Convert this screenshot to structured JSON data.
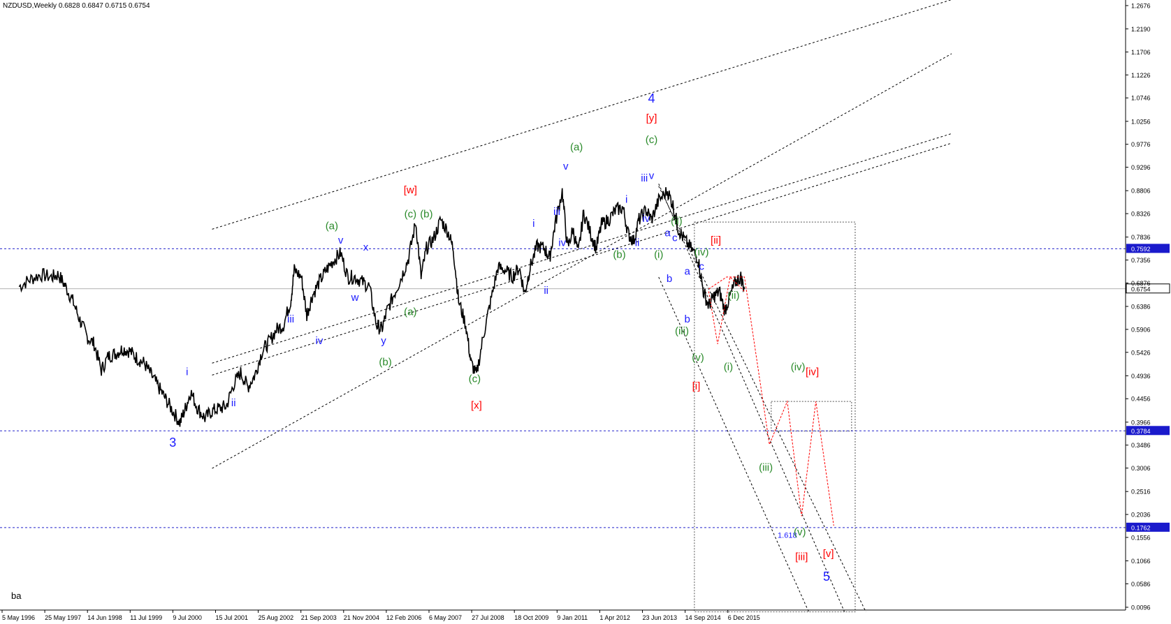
{
  "header": {
    "symbol_line": "NZDUSD,Weekly  0.6828 0.6847 0.6715 0.6754"
  },
  "footer_note": "ba",
  "colors": {
    "price": "#000000",
    "blue": "#1a1aff",
    "green": "#2a8a2a",
    "red": "#ff0000",
    "hline": "#2222cc",
    "axis_tag_bg": "#1a1acc",
    "current_tag_bg": "#ffffff"
  },
  "chart_data": {
    "type": "line",
    "title": "",
    "xlabel": "",
    "ylabel": "",
    "ylim": [
      0.0,
      1.3
    ],
    "y_axis_labels": [
      "1.2676",
      "1.2190",
      "1.1706",
      "1.1226",
      "1.0746",
      "1.0256",
      "0.9776",
      "0.9296",
      "0.8806",
      "0.8326",
      "0.7836",
      "0.7356",
      "0.6876",
      "0.6386",
      "0.5906",
      "0.5426",
      "0.4936",
      "0.4456",
      "0.3966",
      "0.3486",
      "0.3006",
      "0.2516",
      "0.2036",
      "0.1556",
      "0.1066",
      "0.0586",
      "0.0096"
    ],
    "x_axis_labels": [
      "5 May 1996",
      "25 May 1997",
      "14 Jun 1998",
      "11 Jul 1999",
      "9 Jul 2000",
      "15 Jul 2001",
      "25 Aug 2002",
      "21 Sep 2003",
      "21 Nov 2004",
      "12 Feb 2006",
      "6 May 2007",
      "27 Jul 2008",
      "18 Oct 2009",
      "9 Jan 2011",
      "1 Apr 2012",
      "23 Jun 2013",
      "14 Sep 2014",
      "6 Dec 2015"
    ],
    "price_path": [
      [
        1996.3,
        0.68
      ],
      [
        1996.6,
        0.695
      ],
      [
        1996.9,
        0.705
      ],
      [
        1997.2,
        0.7
      ],
      [
        1997.4,
        0.705
      ],
      [
        1997.6,
        0.68
      ],
      [
        1997.8,
        0.65
      ],
      [
        1998.0,
        0.61
      ],
      [
        1998.2,
        0.575
      ],
      [
        1998.4,
        0.56
      ],
      [
        1998.6,
        0.505
      ],
      [
        1998.8,
        0.535
      ],
      [
        1999.0,
        0.54
      ],
      [
        1999.2,
        0.55
      ],
      [
        1999.4,
        0.545
      ],
      [
        1999.6,
        0.53
      ],
      [
        1999.8,
        0.52
      ],
      [
        2000.0,
        0.495
      ],
      [
        2000.2,
        0.47
      ],
      [
        2000.4,
        0.445
      ],
      [
        2000.6,
        0.42
      ],
      [
        2000.8,
        0.395
      ],
      [
        2000.95,
        0.425
      ],
      [
        2001.1,
        0.46
      ],
      [
        2001.3,
        0.425
      ],
      [
        2001.5,
        0.405
      ],
      [
        2001.7,
        0.42
      ],
      [
        2001.9,
        0.425
      ],
      [
        2002.1,
        0.43
      ],
      [
        2002.3,
        0.475
      ],
      [
        2002.5,
        0.5
      ],
      [
        2002.7,
        0.47
      ],
      [
        2002.9,
        0.495
      ],
      [
        2003.1,
        0.545
      ],
      [
        2003.3,
        0.565
      ],
      [
        2003.5,
        0.59
      ],
      [
        2003.7,
        0.6
      ],
      [
        2003.9,
        0.65
      ],
      [
        2004.0,
        0.715
      ],
      [
        2004.2,
        0.7
      ],
      [
        2004.35,
        0.62
      ],
      [
        2004.5,
        0.66
      ],
      [
        2004.7,
        0.69
      ],
      [
        2004.9,
        0.715
      ],
      [
        2005.1,
        0.735
      ],
      [
        2005.3,
        0.75
      ],
      [
        2005.5,
        0.7
      ],
      [
        2005.7,
        0.7
      ],
      [
        2005.9,
        0.69
      ],
      [
        2006.1,
        0.68
      ],
      [
        2006.3,
        0.6
      ],
      [
        2006.45,
        0.59
      ],
      [
        2006.6,
        0.63
      ],
      [
        2006.8,
        0.665
      ],
      [
        2007.0,
        0.7
      ],
      [
        2007.2,
        0.74
      ],
      [
        2007.4,
        0.815
      ],
      [
        2007.55,
        0.7
      ],
      [
        2007.7,
        0.76
      ],
      [
        2007.9,
        0.78
      ],
      [
        2008.1,
        0.82
      ],
      [
        2008.3,
        0.795
      ],
      [
        2008.45,
        0.76
      ],
      [
        2008.6,
        0.65
      ],
      [
        2008.8,
        0.6
      ],
      [
        2008.95,
        0.52
      ],
      [
        2009.1,
        0.495
      ],
      [
        2009.3,
        0.58
      ],
      [
        2009.5,
        0.65
      ],
      [
        2009.7,
        0.72
      ],
      [
        2009.9,
        0.715
      ],
      [
        2010.1,
        0.7
      ],
      [
        2010.3,
        0.72
      ],
      [
        2010.45,
        0.665
      ],
      [
        2010.6,
        0.72
      ],
      [
        2010.8,
        0.765
      ],
      [
        2011.0,
        0.76
      ],
      [
        2011.15,
        0.74
      ],
      [
        2011.3,
        0.81
      ],
      [
        2011.5,
        0.88
      ],
      [
        2011.65,
        0.76
      ],
      [
        2011.8,
        0.8
      ],
      [
        2011.95,
        0.75
      ],
      [
        2012.1,
        0.835
      ],
      [
        2012.3,
        0.79
      ],
      [
        2012.45,
        0.76
      ],
      [
        2012.6,
        0.81
      ],
      [
        2012.8,
        0.82
      ],
      [
        2013.0,
        0.84
      ],
      [
        2013.2,
        0.845
      ],
      [
        2013.35,
        0.79
      ],
      [
        2013.5,
        0.775
      ],
      [
        2013.65,
        0.82
      ],
      [
        2013.85,
        0.84
      ],
      [
        2014.0,
        0.82
      ],
      [
        2014.2,
        0.86
      ],
      [
        2014.45,
        0.88
      ],
      [
        2014.6,
        0.85
      ],
      [
        2014.75,
        0.8
      ],
      [
        2014.9,
        0.78
      ],
      [
        2015.1,
        0.76
      ],
      [
        2015.3,
        0.74
      ],
      [
        2015.45,
        0.67
      ],
      [
        2015.6,
        0.64
      ],
      [
        2015.75,
        0.66
      ],
      [
        2015.9,
        0.67
      ],
      [
        2016.05,
        0.63
      ],
      [
        2016.2,
        0.66
      ],
      [
        2016.35,
        0.69
      ],
      [
        2016.5,
        0.7
      ],
      [
        2016.6,
        0.675
      ]
    ],
    "labels": [
      {
        "t": "3",
        "x": 2000.6,
        "y": 0.345,
        "c": "blue",
        "s": 18
      },
      {
        "t": "i",
        "x": 2001.0,
        "y": 0.495,
        "c": "blue",
        "s": 15
      },
      {
        "t": "ii",
        "x": 2002.3,
        "y": 0.43,
        "c": "blue",
        "s": 15
      },
      {
        "t": "iii",
        "x": 2003.9,
        "y": 0.605,
        "c": "blue",
        "s": 15
      },
      {
        "t": "iv",
        "x": 2004.7,
        "y": 0.56,
        "c": "blue",
        "s": 15
      },
      {
        "t": "v",
        "x": 2005.3,
        "y": 0.77,
        "c": "blue",
        "s": 15
      },
      {
        "t": "w",
        "x": 2005.7,
        "y": 0.65,
        "c": "blue",
        "s": 15
      },
      {
        "t": "x",
        "x": 2006.0,
        "y": 0.755,
        "c": "blue",
        "s": 15
      },
      {
        "t": "y",
        "x": 2006.5,
        "y": 0.56,
        "c": "blue",
        "s": 15
      },
      {
        "t": "(a)",
        "x": 2005.05,
        "y": 0.8,
        "c": "green",
        "s": 15
      },
      {
        "t": "(b)",
        "x": 2006.55,
        "y": 0.515,
        "c": "green",
        "s": 15
      },
      {
        "t": "(c)",
        "x": 2007.25,
        "y": 0.825,
        "c": "green",
        "s": 15
      },
      {
        "t": "[w]",
        "x": 2007.25,
        "y": 0.875,
        "c": "red",
        "s": 15
      },
      {
        "t": "(b)",
        "x": 2007.7,
        "y": 0.825,
        "c": "green",
        "s": 15
      },
      {
        "t": "(a)",
        "x": 2007.25,
        "y": 0.62,
        "c": "green",
        "s": 15
      },
      {
        "t": "(c)",
        "x": 2009.05,
        "y": 0.48,
        "c": "green",
        "s": 15
      },
      {
        "t": "[x]",
        "x": 2009.1,
        "y": 0.425,
        "c": "red",
        "s": 15
      },
      {
        "t": "i",
        "x": 2010.7,
        "y": 0.805,
        "c": "blue",
        "s": 15
      },
      {
        "t": "ii",
        "x": 2011.05,
        "y": 0.665,
        "c": "blue",
        "s": 15
      },
      {
        "t": "iii",
        "x": 2011.35,
        "y": 0.83,
        "c": "blue",
        "s": 15
      },
      {
        "t": "iv",
        "x": 2011.5,
        "y": 0.765,
        "c": "blue",
        "s": 15
      },
      {
        "t": "v",
        "x": 2011.6,
        "y": 0.925,
        "c": "blue",
        "s": 15
      },
      {
        "t": "(a)",
        "x": 2011.9,
        "y": 0.965,
        "c": "green",
        "s": 15
      },
      {
        "t": "(b)",
        "x": 2013.1,
        "y": 0.74,
        "c": "green",
        "s": 15
      },
      {
        "t": "i",
        "x": 2013.3,
        "y": 0.855,
        "c": "blue",
        "s": 15
      },
      {
        "t": "ii",
        "x": 2013.6,
        "y": 0.765,
        "c": "blue",
        "s": 15
      },
      {
        "t": "iii",
        "x": 2013.8,
        "y": 0.9,
        "c": "blue",
        "s": 15
      },
      {
        "t": "v",
        "x": 2014.0,
        "y": 0.905,
        "c": "blue",
        "s": 15
      },
      {
        "t": "iv",
        "x": 2013.85,
        "y": 0.815,
        "c": "blue",
        "s": 15
      },
      {
        "t": "(c)",
        "x": 2014.0,
        "y": 0.98,
        "c": "green",
        "s": 15
      },
      {
        "t": "[y]",
        "x": 2014.0,
        "y": 1.025,
        "c": "red",
        "s": 15
      },
      {
        "t": "4",
        "x": 2014.0,
        "y": 1.065,
        "c": "blue",
        "s": 18
      },
      {
        "t": "(ii)",
        "x": 2014.7,
        "y": 0.81,
        "c": "green",
        "s": 15
      },
      {
        "t": "a",
        "x": 2014.45,
        "y": 0.785,
        "c": "blue",
        "s": 15
      },
      {
        "t": "c",
        "x": 2014.65,
        "y": 0.775,
        "c": "blue",
        "s": 15
      },
      {
        "t": "(i)",
        "x": 2014.2,
        "y": 0.74,
        "c": "green",
        "s": 15
      },
      {
        "t": "b",
        "x": 2014.5,
        "y": 0.69,
        "c": "blue",
        "s": 15
      },
      {
        "t": "a",
        "x": 2015.0,
        "y": 0.705,
        "c": "blue",
        "s": 15
      },
      {
        "t": "(iv)",
        "x": 2015.4,
        "y": 0.745,
        "c": "green",
        "s": 15
      },
      {
        "t": "c",
        "x": 2015.4,
        "y": 0.715,
        "c": "blue",
        "s": 15
      },
      {
        "t": "[ii]",
        "x": 2015.8,
        "y": 0.77,
        "c": "red",
        "s": 15
      },
      {
        "t": "b",
        "x": 2015.0,
        "y": 0.605,
        "c": "blue",
        "s": 15
      },
      {
        "t": "(iii)",
        "x": 2014.85,
        "y": 0.58,
        "c": "green",
        "s": 15
      },
      {
        "t": "(ii)",
        "x": 2016.3,
        "y": 0.655,
        "c": "green",
        "s": 15
      },
      {
        "t": "(v)",
        "x": 2015.3,
        "y": 0.525,
        "c": "green",
        "s": 15
      },
      {
        "t": "(i)",
        "x": 2016.15,
        "y": 0.505,
        "c": "green",
        "s": 15
      },
      {
        "t": "[i]",
        "x": 2015.25,
        "y": 0.465,
        "c": "red",
        "s": 15
      },
      {
        "t": "(iv)",
        "x": 2018.1,
        "y": 0.505,
        "c": "green",
        "s": 15
      },
      {
        "t": "[iv]",
        "x": 2018.5,
        "y": 0.495,
        "c": "red",
        "s": 15
      },
      {
        "t": "(iii)",
        "x": 2017.2,
        "y": 0.295,
        "c": "green",
        "s": 15
      },
      {
        "t": "1.618",
        "x": 2017.8,
        "y": 0.155,
        "c": "blue",
        "s": 11
      },
      {
        "t": "(v)",
        "x": 2018.15,
        "y": 0.16,
        "c": "green",
        "s": 15
      },
      {
        "t": "[iii]",
        "x": 2018.2,
        "y": 0.108,
        "c": "red",
        "s": 15
      },
      {
        "t": "[v]",
        "x": 2018.95,
        "y": 0.115,
        "c": "red",
        "s": 15
      },
      {
        "t": "5",
        "x": 2018.9,
        "y": 0.065,
        "c": "blue",
        "s": 18
      }
    ],
    "hlines": [
      {
        "y": 0.7592,
        "label": "0.7592",
        "style": "blue"
      },
      {
        "y": 0.3784,
        "label": "0.3784",
        "style": "blue"
      },
      {
        "y": 0.1762,
        "label": "0.1762",
        "style": "blue"
      },
      {
        "y": 0.6754,
        "label": "0.6754",
        "style": "current"
      }
    ],
    "channels": [
      [
        [
          2001.7,
          0.8
        ],
        [
          2022.4,
          1.28
        ]
      ],
      [
        [
          2001.7,
          0.52
        ],
        [
          2022.4,
          1.0
        ]
      ],
      [
        [
          2001.7,
          0.3
        ],
        [
          2022.4,
          1.167
        ]
      ],
      [
        [
          2001.7,
          0.495
        ],
        [
          2022.4,
          0.98
        ]
      ]
    ],
    "down_channels": [
      [
        [
          2014.2,
          0.895
        ],
        [
          2019.4,
          0.0
        ]
      ],
      [
        [
          2014.2,
          0.7
        ],
        [
          2018.4,
          0.0
        ]
      ],
      [
        [
          2014.2,
          0.89
        ],
        [
          2020.0,
          0.0
        ]
      ]
    ],
    "boxes": [
      {
        "x0": 2015.2,
        "y0": 0.0,
        "x1": 2019.7,
        "y1": 0.815
      },
      {
        "x0": 2017.35,
        "y0": 0.378,
        "x1": 2019.6,
        "y1": 0.44
      }
    ],
    "forecast_path": [
      [
        2015.6,
        0.675
      ],
      [
        2016.1,
        0.7
      ],
      [
        2016.6,
        0.7
      ],
      [
        2017.3,
        0.35
      ],
      [
        2017.8,
        0.44
      ],
      [
        2018.2,
        0.2
      ],
      [
        2018.6,
        0.44
      ],
      [
        2019.1,
        0.18
      ]
    ],
    "forecast_path2": [
      [
        2015.6,
        0.67
      ],
      [
        2015.85,
        0.56
      ],
      [
        2016.2,
        0.7
      ],
      [
        2016.6,
        0.67
      ]
    ]
  }
}
